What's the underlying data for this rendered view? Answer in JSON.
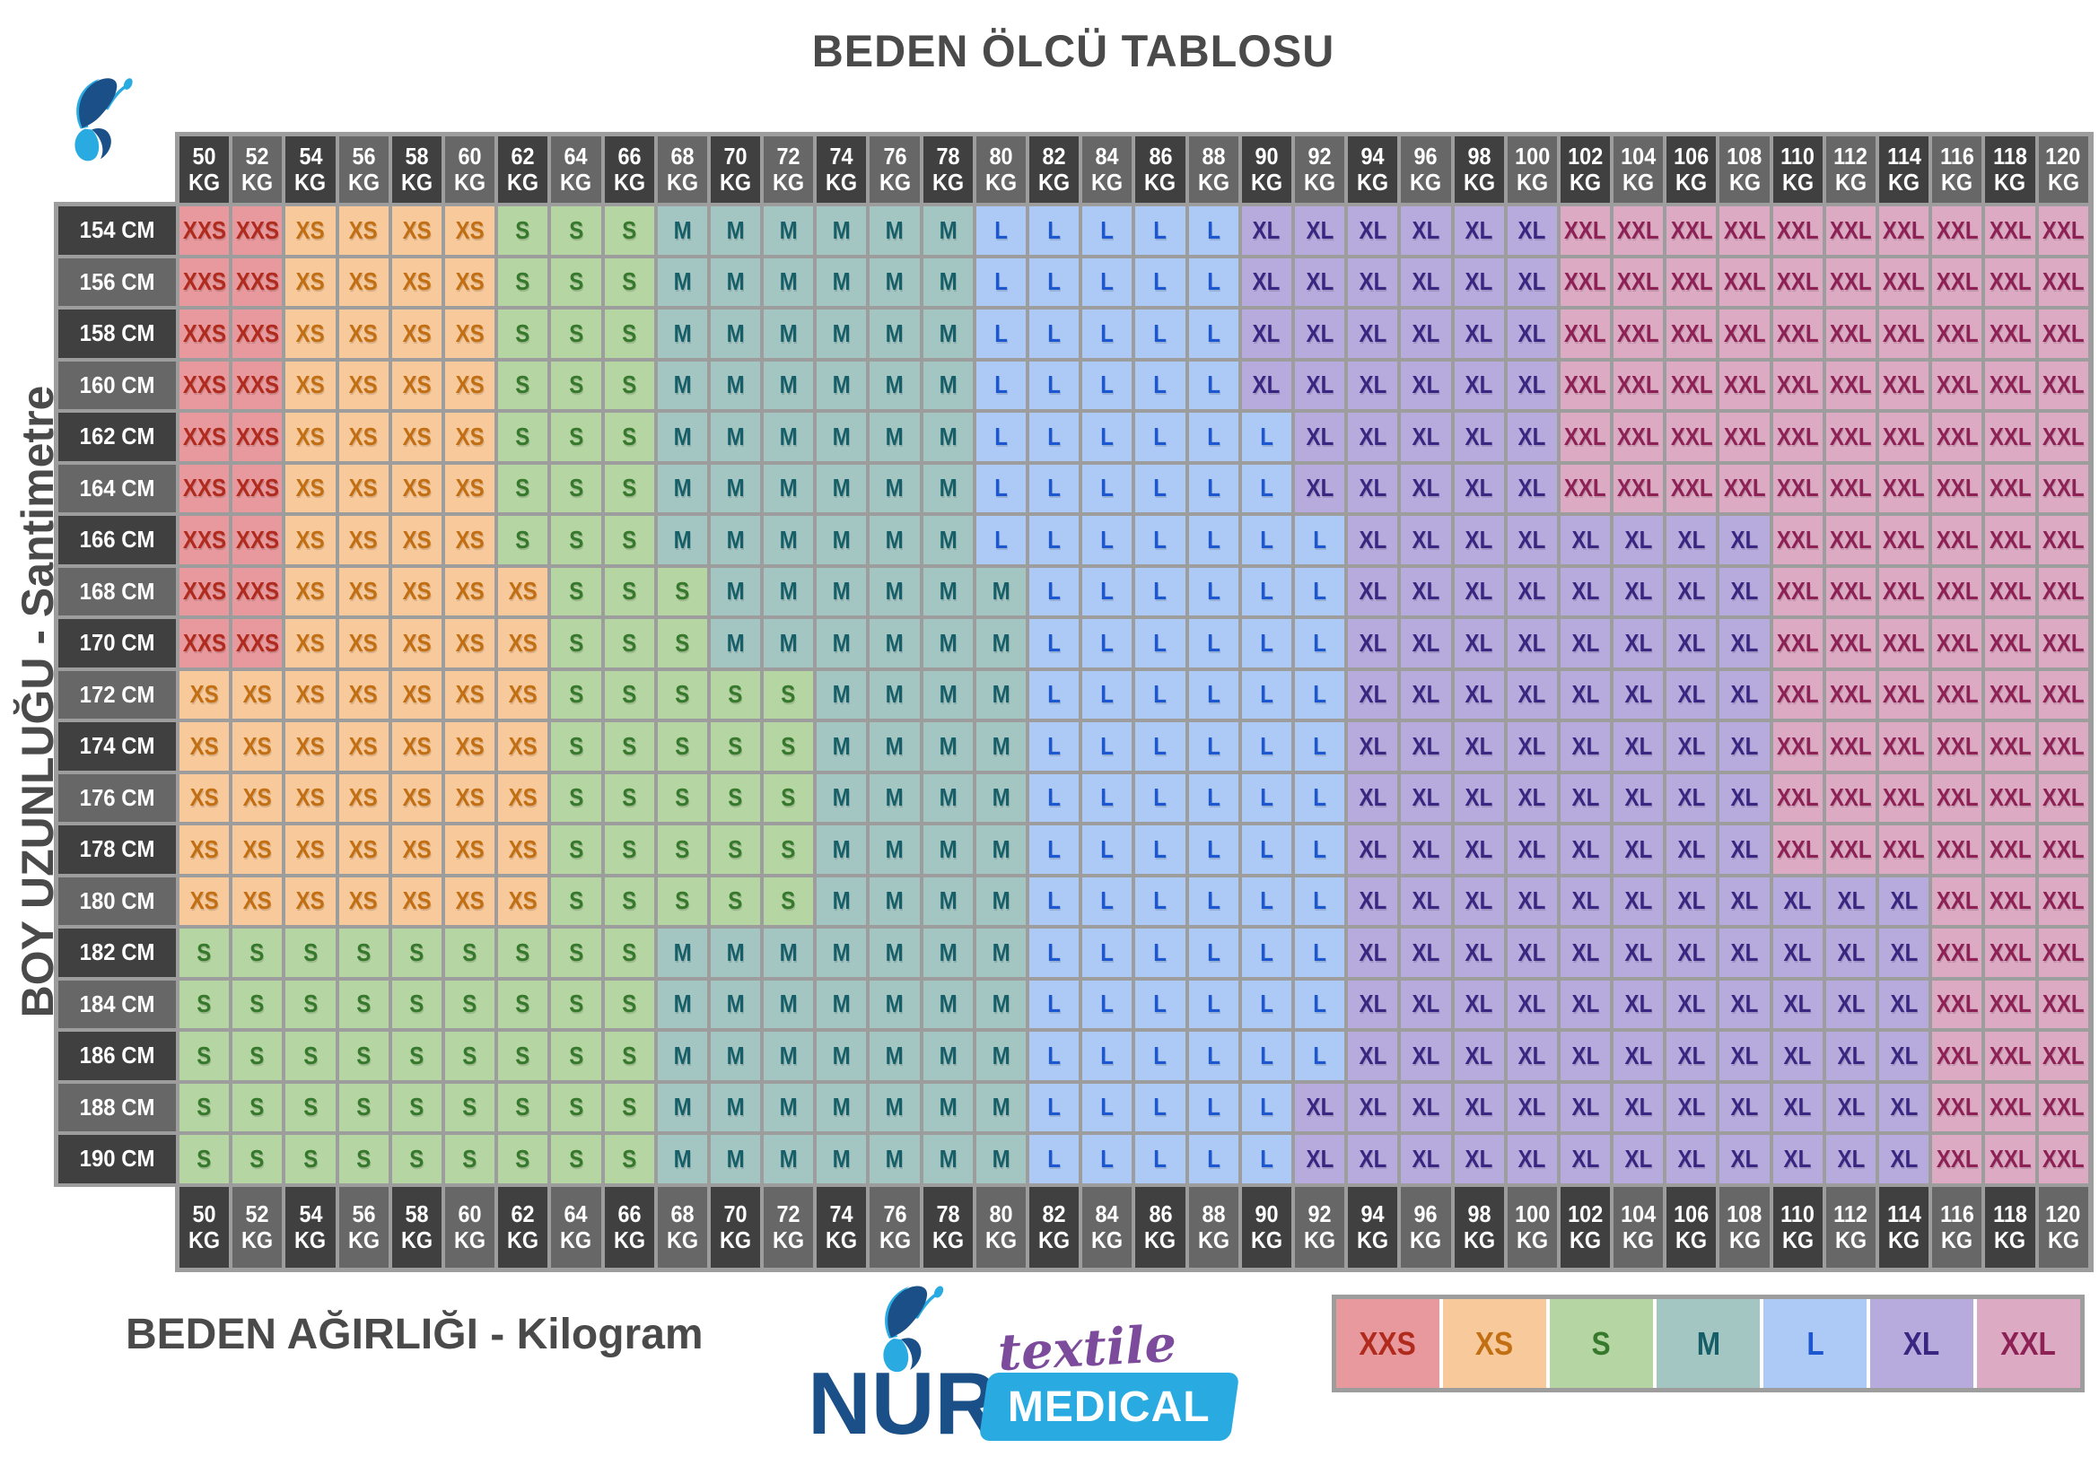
{
  "title": "BEDEN ÖLCÜ TABLOSU",
  "y_axis_label": "BOY UZUNLUĞU - Santimetre",
  "x_axis_label": "BEDEN AĞIRLIĞI - Kilogram",
  "units": {
    "weight": "KG",
    "height": "CM"
  },
  "logo": {
    "brand": "NUR",
    "word_top": "textile",
    "word_bottom": "MEDICAL"
  },
  "legend": [
    "XXS",
    "XS",
    "S",
    "M",
    "L",
    "XL",
    "XXL"
  ],
  "colors": {
    "sizes": {
      "XXS": {
        "bg": "#e7999d",
        "fg": "#b02a1d"
      },
      "XS": {
        "bg": "#f8ca9b",
        "fg": "#c26f13"
      },
      "S": {
        "bg": "#b5d5a3",
        "fg": "#37792c"
      },
      "M": {
        "bg": "#a3c6c3",
        "fg": "#175f68"
      },
      "L": {
        "bg": "#adc9f6",
        "fg": "#1d57cf"
      },
      "XL": {
        "bg": "#b7abde",
        "fg": "#382680"
      },
      "XXL": {
        "bg": "#dcabc3",
        "fg": "#8d2156"
      }
    },
    "header_dark": "#404040",
    "header_light": "#676767",
    "header_text": "#ffffff",
    "grid_line": "#9d9d9d",
    "title_text": "#4a4a4a",
    "logo_navy": "#1b4f87",
    "logo_purple": "#7d4b9b",
    "logo_blue": "#29abe2"
  },
  "chart_data": {
    "type": "table",
    "title": "BEDEN ÖLCÜ TABLOSU",
    "xlabel": "BEDEN AĞIRLIĞI - Kilogram",
    "ylabel": "BOY UZUNLUĞU - Santimetre",
    "weights_kg": [
      50,
      52,
      54,
      56,
      58,
      60,
      62,
      64,
      66,
      68,
      70,
      72,
      74,
      76,
      78,
      80,
      82,
      84,
      86,
      88,
      90,
      92,
      94,
      96,
      98,
      100,
      102,
      104,
      106,
      108,
      110,
      112,
      114,
      116,
      118,
      120
    ],
    "rows": [
      {
        "height_cm": 154,
        "label": "154 CM",
        "runs": [
          [
            "XXS",
            2
          ],
          [
            "XS",
            4
          ],
          [
            "S",
            3
          ],
          [
            "M",
            6
          ],
          [
            "L",
            5
          ],
          [
            "XL",
            6
          ],
          [
            "XXL",
            10
          ]
        ]
      },
      {
        "height_cm": 156,
        "label": "156 CM",
        "runs": [
          [
            "XXS",
            2
          ],
          [
            "XS",
            4
          ],
          [
            "S",
            3
          ],
          [
            "M",
            6
          ],
          [
            "L",
            5
          ],
          [
            "XL",
            6
          ],
          [
            "XXL",
            10
          ]
        ]
      },
      {
        "height_cm": 158,
        "label": "158 CM",
        "runs": [
          [
            "XXS",
            2
          ],
          [
            "XS",
            4
          ],
          [
            "S",
            3
          ],
          [
            "M",
            6
          ],
          [
            "L",
            5
          ],
          [
            "XL",
            6
          ],
          [
            "XXL",
            10
          ]
        ]
      },
      {
        "height_cm": 160,
        "label": "160 CM",
        "runs": [
          [
            "XXS",
            2
          ],
          [
            "XS",
            4
          ],
          [
            "S",
            3
          ],
          [
            "M",
            6
          ],
          [
            "L",
            5
          ],
          [
            "XL",
            6
          ],
          [
            "XXL",
            10
          ]
        ]
      },
      {
        "height_cm": 162,
        "label": "162 CM",
        "runs": [
          [
            "XXS",
            2
          ],
          [
            "XS",
            4
          ],
          [
            "S",
            3
          ],
          [
            "M",
            6
          ],
          [
            "L",
            6
          ],
          [
            "XL",
            5
          ],
          [
            "XXL",
            10
          ]
        ]
      },
      {
        "height_cm": 164,
        "label": "164 CM",
        "runs": [
          [
            "XXS",
            2
          ],
          [
            "XS",
            4
          ],
          [
            "S",
            3
          ],
          [
            "M",
            6
          ],
          [
            "L",
            6
          ],
          [
            "XL",
            5
          ],
          [
            "XXL",
            10
          ]
        ]
      },
      {
        "height_cm": 166,
        "label": "166 CM",
        "runs": [
          [
            "XXS",
            2
          ],
          [
            "XS",
            4
          ],
          [
            "S",
            3
          ],
          [
            "M",
            6
          ],
          [
            "L",
            7
          ],
          [
            "XL",
            8
          ],
          [
            "XXL",
            6
          ]
        ]
      },
      {
        "height_cm": 168,
        "label": "168 CM",
        "runs": [
          [
            "XXS",
            2
          ],
          [
            "XS",
            5
          ],
          [
            "S",
            3
          ],
          [
            "M",
            6
          ],
          [
            "L",
            6
          ],
          [
            "XL",
            8
          ],
          [
            "XXL",
            6
          ]
        ]
      },
      {
        "height_cm": 170,
        "label": "170 CM",
        "runs": [
          [
            "XXS",
            2
          ],
          [
            "XS",
            5
          ],
          [
            "S",
            3
          ],
          [
            "M",
            6
          ],
          [
            "L",
            6
          ],
          [
            "XL",
            8
          ],
          [
            "XXL",
            6
          ]
        ]
      },
      {
        "height_cm": 172,
        "label": "172 CM",
        "runs": [
          [
            "XS",
            7
          ],
          [
            "S",
            5
          ],
          [
            "M",
            4
          ],
          [
            "L",
            6
          ],
          [
            "XL",
            8
          ],
          [
            "XXL",
            6
          ]
        ]
      },
      {
        "height_cm": 174,
        "label": "174 CM",
        "runs": [
          [
            "XS",
            7
          ],
          [
            "S",
            5
          ],
          [
            "M",
            4
          ],
          [
            "L",
            6
          ],
          [
            "XL",
            8
          ],
          [
            "XXL",
            6
          ]
        ]
      },
      {
        "height_cm": 176,
        "label": "176 CM",
        "runs": [
          [
            "XS",
            7
          ],
          [
            "S",
            5
          ],
          [
            "M",
            4
          ],
          [
            "L",
            6
          ],
          [
            "XL",
            8
          ],
          [
            "XXL",
            6
          ]
        ]
      },
      {
        "height_cm": 178,
        "label": "178 CM",
        "runs": [
          [
            "XS",
            7
          ],
          [
            "S",
            5
          ],
          [
            "M",
            4
          ],
          [
            "L",
            6
          ],
          [
            "XL",
            8
          ],
          [
            "XXL",
            6
          ]
        ]
      },
      {
        "height_cm": 180,
        "label": "180 CM",
        "runs": [
          [
            "XS",
            7
          ],
          [
            "S",
            5
          ],
          [
            "M",
            4
          ],
          [
            "L",
            6
          ],
          [
            "XL",
            11
          ],
          [
            "XXL",
            3
          ]
        ]
      },
      {
        "height_cm": 182,
        "label": "182 CM",
        "runs": [
          [
            "S",
            9
          ],
          [
            "M",
            7
          ],
          [
            "L",
            6
          ],
          [
            "XL",
            11
          ],
          [
            "XXL",
            3
          ]
        ]
      },
      {
        "height_cm": 184,
        "label": "184 CM",
        "runs": [
          [
            "S",
            9
          ],
          [
            "M",
            7
          ],
          [
            "L",
            6
          ],
          [
            "XL",
            11
          ],
          [
            "XXL",
            3
          ]
        ]
      },
      {
        "height_cm": 186,
        "label": "186 CM",
        "runs": [
          [
            "S",
            9
          ],
          [
            "M",
            7
          ],
          [
            "L",
            6
          ],
          [
            "XL",
            11
          ],
          [
            "XXL",
            3
          ]
        ]
      },
      {
        "height_cm": 188,
        "label": "188 CM",
        "runs": [
          [
            "S",
            9
          ],
          [
            "M",
            7
          ],
          [
            "L",
            5
          ],
          [
            "XL",
            12
          ],
          [
            "XXL",
            3
          ]
        ]
      },
      {
        "height_cm": 190,
        "label": "190 CM",
        "runs": [
          [
            "S",
            9
          ],
          [
            "M",
            7
          ],
          [
            "L",
            5
          ],
          [
            "XL",
            12
          ],
          [
            "XXL",
            3
          ]
        ]
      }
    ]
  }
}
